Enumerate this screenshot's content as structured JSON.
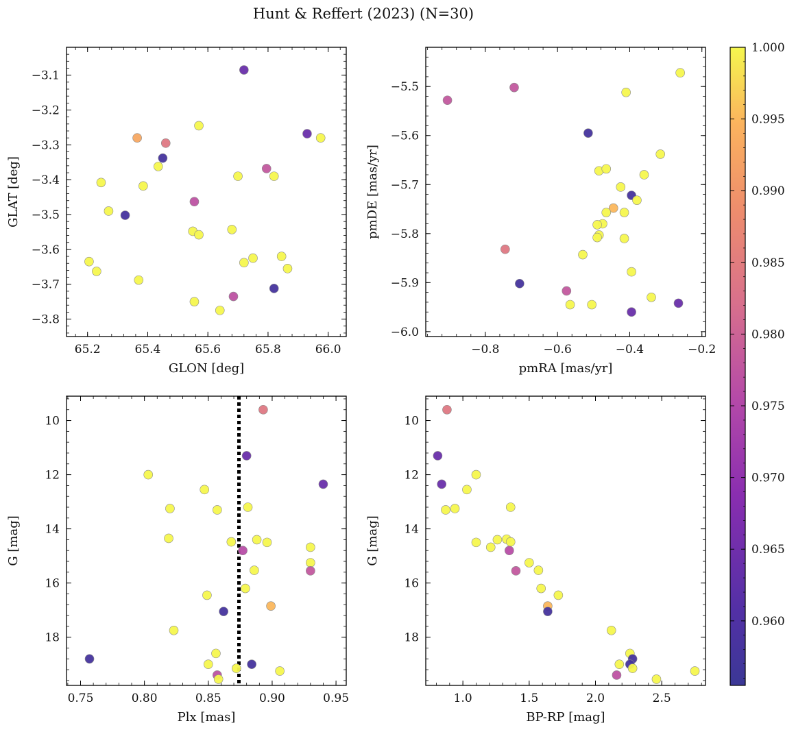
{
  "figure": {
    "title": "Hunt & Reffert (2023) (N=30)"
  },
  "colorbar": {
    "colormap": "plasma",
    "min": 0.9555,
    "max": 1.0,
    "ticks": [
      "0.960",
      "0.965",
      "0.970",
      "0.975",
      "0.980",
      "0.985",
      "0.990",
      "0.995",
      "1.000"
    ],
    "tick_values": [
      0.96,
      0.965,
      0.97,
      0.975,
      0.98,
      0.985,
      0.99,
      0.995,
      1.0
    ]
  },
  "chart_data": [
    {
      "type": "scatter",
      "xlabel": "GLON [deg]",
      "ylabel": "GLAT [deg]",
      "xlim": [
        65.13,
        66.06
      ],
      "ylim": [
        -3.85,
        -3.02
      ],
      "x_ticks": [
        65.2,
        65.4,
        65.6,
        65.8,
        66.0
      ],
      "x_tick_labels": [
        "65.2",
        "65.4",
        "65.6",
        "65.8",
        "66.0"
      ],
      "y_ticks": [
        -3.1,
        -3.2,
        -3.3,
        -3.4,
        -3.5,
        -3.6,
        -3.7,
        -3.8
      ],
      "y_tick_labels": [
        "−3.1",
        "−3.2",
        "−3.3",
        "−3.4",
        "−3.5",
        "−3.6",
        "−3.7",
        "−3.8"
      ],
      "points": [
        {
          "x": 65.72,
          "y": -3.085,
          "c": 0.964
        },
        {
          "x": 65.57,
          "y": -3.245,
          "c": 1.0
        },
        {
          "x": 65.365,
          "y": -3.28,
          "c": 0.993
        },
        {
          "x": 65.46,
          "y": -3.295,
          "c": 0.984
        },
        {
          "x": 65.93,
          "y": -3.268,
          "c": 0.964
        },
        {
          "x": 65.975,
          "y": -3.28,
          "c": 1.0
        },
        {
          "x": 65.45,
          "y": -3.338,
          "c": 0.958
        },
        {
          "x": 65.435,
          "y": -3.362,
          "c": 1.0
        },
        {
          "x": 65.795,
          "y": -3.368,
          "c": 0.978
        },
        {
          "x": 65.82,
          "y": -3.39,
          "c": 1.0
        },
        {
          "x": 65.7,
          "y": -3.39,
          "c": 1.0
        },
        {
          "x": 65.245,
          "y": -3.408,
          "c": 1.0
        },
        {
          "x": 65.385,
          "y": -3.418,
          "c": 1.0
        },
        {
          "x": 65.555,
          "y": -3.463,
          "c": 0.977
        },
        {
          "x": 65.27,
          "y": -3.49,
          "c": 1.0
        },
        {
          "x": 65.325,
          "y": -3.502,
          "c": 0.958
        },
        {
          "x": 65.55,
          "y": -3.548,
          "c": 1.0
        },
        {
          "x": 65.57,
          "y": -3.558,
          "c": 1.0
        },
        {
          "x": 65.68,
          "y": -3.543,
          "c": 1.0
        },
        {
          "x": 65.75,
          "y": -3.625,
          "c": 1.0
        },
        {
          "x": 65.845,
          "y": -3.62,
          "c": 1.0
        },
        {
          "x": 65.72,
          "y": -3.638,
          "c": 1.0
        },
        {
          "x": 65.205,
          "y": -3.635,
          "c": 1.0
        },
        {
          "x": 65.865,
          "y": -3.655,
          "c": 1.0
        },
        {
          "x": 65.23,
          "y": -3.663,
          "c": 1.0
        },
        {
          "x": 65.37,
          "y": -3.688,
          "c": 1.0
        },
        {
          "x": 65.82,
          "y": -3.712,
          "c": 0.958
        },
        {
          "x": 65.685,
          "y": -3.735,
          "c": 0.977
        },
        {
          "x": 65.555,
          "y": -3.75,
          "c": 1.0
        },
        {
          "x": 65.64,
          "y": -3.775,
          "c": 1.0
        }
      ]
    },
    {
      "type": "scatter",
      "xlabel": "pmRA [mas/yr]",
      "ylabel": "pmDE [mas/yr]",
      "xlim": [
        -0.965,
        -0.19
      ],
      "ylim": [
        -6.01,
        -5.42
      ],
      "x_ticks": [
        -0.8,
        -0.6,
        -0.4,
        -0.2
      ],
      "x_tick_labels": [
        "−0.8",
        "−0.6",
        "−0.4",
        "−0.2"
      ],
      "y_ticks": [
        -5.5,
        -5.6,
        -5.7,
        -5.8,
        -5.9,
        -6.0
      ],
      "y_tick_labels": [
        "−5.5",
        "−5.6",
        "−5.7",
        "−5.8",
        "−5.9",
        "−6.0"
      ],
      "points": [
        {
          "x": -0.26,
          "y": -5.472,
          "c": 1.0
        },
        {
          "x": -0.72,
          "y": -5.502,
          "c": 0.978
        },
        {
          "x": -0.41,
          "y": -5.512,
          "c": 1.0
        },
        {
          "x": -0.905,
          "y": -5.528,
          "c": 0.978
        },
        {
          "x": -0.515,
          "y": -5.595,
          "c": 0.958
        },
        {
          "x": -0.315,
          "y": -5.638,
          "c": 1.0
        },
        {
          "x": -0.485,
          "y": -5.672,
          "c": 1.0
        },
        {
          "x": -0.465,
          "y": -5.668,
          "c": 1.0
        },
        {
          "x": -0.36,
          "y": -5.68,
          "c": 1.0
        },
        {
          "x": -0.425,
          "y": -5.705,
          "c": 1.0
        },
        {
          "x": -0.395,
          "y": -5.722,
          "c": 0.958
        },
        {
          "x": -0.38,
          "y": -5.732,
          "c": 1.0
        },
        {
          "x": -0.445,
          "y": -5.748,
          "c": 0.995
        },
        {
          "x": -0.465,
          "y": -5.757,
          "c": 1.0
        },
        {
          "x": -0.415,
          "y": -5.757,
          "c": 1.0
        },
        {
          "x": -0.475,
          "y": -5.78,
          "c": 1.0
        },
        {
          "x": -0.49,
          "y": -5.782,
          "c": 1.0
        },
        {
          "x": -0.485,
          "y": -5.803,
          "c": 1.0
        },
        {
          "x": -0.49,
          "y": -5.808,
          "c": 1.0
        },
        {
          "x": -0.415,
          "y": -5.81,
          "c": 1.0
        },
        {
          "x": -0.745,
          "y": -5.832,
          "c": 0.984
        },
        {
          "x": -0.53,
          "y": -5.843,
          "c": 1.0
        },
        {
          "x": -0.395,
          "y": -5.878,
          "c": 1.0
        },
        {
          "x": -0.705,
          "y": -5.902,
          "c": 0.958
        },
        {
          "x": -0.575,
          "y": -5.917,
          "c": 0.978
        },
        {
          "x": -0.34,
          "y": -5.93,
          "c": 1.0
        },
        {
          "x": -0.265,
          "y": -5.942,
          "c": 0.964
        },
        {
          "x": -0.565,
          "y": -5.945,
          "c": 1.0
        },
        {
          "x": -0.505,
          "y": -5.945,
          "c": 1.0
        },
        {
          "x": -0.395,
          "y": -5.96,
          "c": 0.964
        }
      ]
    },
    {
      "type": "scatter",
      "xlabel": "Plx [mas]",
      "ylabel": "G [mag]",
      "xlim": [
        0.739,
        0.958
      ],
      "ylim": [
        19.78,
        9.1
      ],
      "reference_line": {
        "x": 0.874,
        "style": "dotted"
      },
      "x_ticks": [
        0.75,
        0.8,
        0.85,
        0.9,
        0.95
      ],
      "x_tick_labels": [
        "0.75",
        "0.80",
        "0.85",
        "0.90",
        "0.95"
      ],
      "y_ticks": [
        10,
        12,
        14,
        16,
        18
      ],
      "y_tick_labels": [
        "10",
        "12",
        "14",
        "16",
        "18"
      ],
      "points": [
        {
          "x": 0.893,
          "y": 9.6,
          "c": 0.984
        },
        {
          "x": 0.88,
          "y": 11.3,
          "c": 0.964
        },
        {
          "x": 0.803,
          "y": 12.0,
          "c": 1.0
        },
        {
          "x": 0.94,
          "y": 12.35,
          "c": 0.964
        },
        {
          "x": 0.847,
          "y": 12.55,
          "c": 1.0
        },
        {
          "x": 0.82,
          "y": 13.25,
          "c": 1.0
        },
        {
          "x": 0.857,
          "y": 13.3,
          "c": 1.0
        },
        {
          "x": 0.881,
          "y": 13.2,
          "c": 1.0
        },
        {
          "x": 0.819,
          "y": 14.35,
          "c": 1.0
        },
        {
          "x": 0.888,
          "y": 14.4,
          "c": 1.0
        },
        {
          "x": 0.868,
          "y": 14.48,
          "c": 1.0
        },
        {
          "x": 0.896,
          "y": 14.5,
          "c": 1.0
        },
        {
          "x": 0.93,
          "y": 14.68,
          "c": 1.0
        },
        {
          "x": 0.877,
          "y": 14.8,
          "c": 0.976
        },
        {
          "x": 0.93,
          "y": 15.25,
          "c": 1.0
        },
        {
          "x": 0.886,
          "y": 15.53,
          "c": 1.0
        },
        {
          "x": 0.93,
          "y": 15.55,
          "c": 0.978
        },
        {
          "x": 0.879,
          "y": 16.2,
          "c": 1.0
        },
        {
          "x": 0.849,
          "y": 16.45,
          "c": 1.0
        },
        {
          "x": 0.899,
          "y": 16.85,
          "c": 0.995
        },
        {
          "x": 0.862,
          "y": 17.05,
          "c": 0.958
        },
        {
          "x": 0.823,
          "y": 17.75,
          "c": 1.0
        },
        {
          "x": 0.856,
          "y": 18.6,
          "c": 1.0
        },
        {
          "x": 0.757,
          "y": 18.8,
          "c": 0.958
        },
        {
          "x": 0.85,
          "y": 19.0,
          "c": 1.0
        },
        {
          "x": 0.884,
          "y": 19.0,
          "c": 0.958
        },
        {
          "x": 0.872,
          "y": 19.15,
          "c": 1.0
        },
        {
          "x": 0.906,
          "y": 19.25,
          "c": 1.0
        },
        {
          "x": 0.857,
          "y": 19.4,
          "c": 0.977
        },
        {
          "x": 0.858,
          "y": 19.55,
          "c": 1.0
        }
      ]
    },
    {
      "type": "scatter",
      "xlabel": "BP-RP [mag]",
      "ylabel": "G [mag]",
      "xlim": [
        0.72,
        2.83
      ],
      "ylim": [
        19.78,
        9.1
      ],
      "x_ticks": [
        1.0,
        1.5,
        2.0,
        2.5
      ],
      "x_tick_labels": [
        "1.0",
        "1.5",
        "2.0",
        "2.5"
      ],
      "y_ticks": [
        10,
        12,
        14,
        16,
        18
      ],
      "y_tick_labels": [
        "10",
        "12",
        "14",
        "16",
        "18"
      ],
      "points": [
        {
          "x": 0.88,
          "y": 9.6,
          "c": 0.984
        },
        {
          "x": 0.81,
          "y": 11.3,
          "c": 0.964
        },
        {
          "x": 1.1,
          "y": 12.0,
          "c": 1.0
        },
        {
          "x": 0.84,
          "y": 12.35,
          "c": 0.964
        },
        {
          "x": 1.03,
          "y": 12.55,
          "c": 1.0
        },
        {
          "x": 0.87,
          "y": 13.3,
          "c": 1.0
        },
        {
          "x": 0.94,
          "y": 13.25,
          "c": 1.0
        },
        {
          "x": 1.36,
          "y": 13.2,
          "c": 1.0
        },
        {
          "x": 1.26,
          "y": 14.4,
          "c": 1.0
        },
        {
          "x": 1.33,
          "y": 14.38,
          "c": 1.0
        },
        {
          "x": 1.36,
          "y": 14.48,
          "c": 1.0
        },
        {
          "x": 1.1,
          "y": 14.5,
          "c": 1.0
        },
        {
          "x": 1.21,
          "y": 14.68,
          "c": 1.0
        },
        {
          "x": 1.35,
          "y": 14.8,
          "c": 0.976
        },
        {
          "x": 1.5,
          "y": 15.25,
          "c": 1.0
        },
        {
          "x": 1.57,
          "y": 15.53,
          "c": 1.0
        },
        {
          "x": 1.4,
          "y": 15.55,
          "c": 0.978
        },
        {
          "x": 1.59,
          "y": 16.2,
          "c": 1.0
        },
        {
          "x": 1.72,
          "y": 16.45,
          "c": 1.0
        },
        {
          "x": 1.64,
          "y": 16.85,
          "c": 0.995
        },
        {
          "x": 1.64,
          "y": 17.05,
          "c": 0.958
        },
        {
          "x": 2.12,
          "y": 17.75,
          "c": 1.0
        },
        {
          "x": 2.26,
          "y": 18.6,
          "c": 1.0
        },
        {
          "x": 2.28,
          "y": 18.8,
          "c": 0.958
        },
        {
          "x": 2.18,
          "y": 19.0,
          "c": 1.0
        },
        {
          "x": 2.26,
          "y": 19.0,
          "c": 0.958
        },
        {
          "x": 2.28,
          "y": 19.15,
          "c": 1.0
        },
        {
          "x": 2.75,
          "y": 19.25,
          "c": 1.0
        },
        {
          "x": 2.16,
          "y": 19.4,
          "c": 0.977
        },
        {
          "x": 2.46,
          "y": 19.55,
          "c": 1.0
        }
      ]
    }
  ]
}
